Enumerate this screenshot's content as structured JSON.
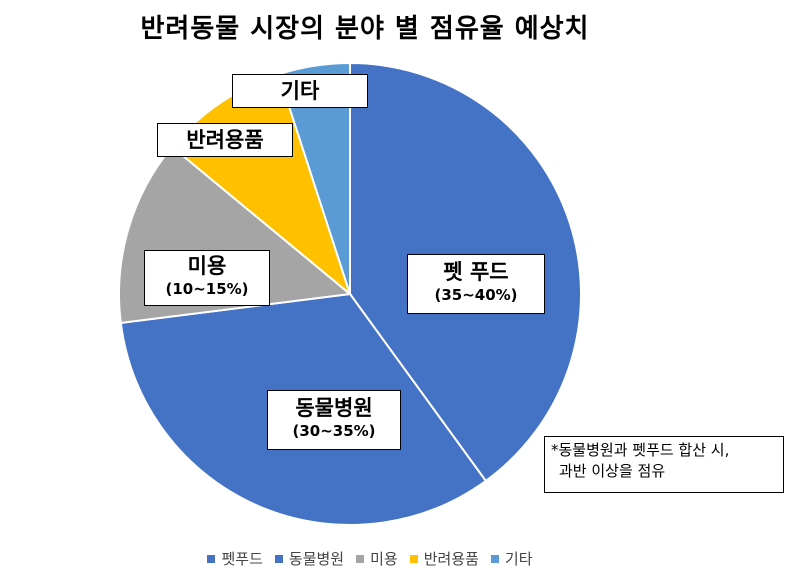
{
  "chart_data": {
    "type": "pie",
    "title": "반려동물 시장의 분야 별 점유율 예상치",
    "categories": [
      "펫푸드",
      "동물병원",
      "미용",
      "반려용품",
      "기타"
    ],
    "values": [
      40,
      33,
      13,
      9,
      5
    ],
    "colors": [
      "#4472C4",
      "#4472C4",
      "#A5A5A5",
      "#FFC000",
      "#5B9BD5"
    ],
    "slice_labels": [
      {
        "name": "펫 푸드",
        "range": "(35~40%)"
      },
      {
        "name": "동물병원",
        "range": "(30~35%)"
      },
      {
        "name": "미용",
        "range": "(10~15%)"
      },
      {
        "name": "반려용품",
        "range": ""
      },
      {
        "name": "기타",
        "range": ""
      }
    ],
    "legend": {
      "placement": "bottom",
      "entries": [
        "펫푸드",
        "동물병원",
        "미용",
        "반려용품",
        "기타"
      ]
    },
    "annotation": {
      "line1": "*동물병원과 펫푸드 합산 시,",
      "line2": "과반 이상을 점유"
    }
  }
}
